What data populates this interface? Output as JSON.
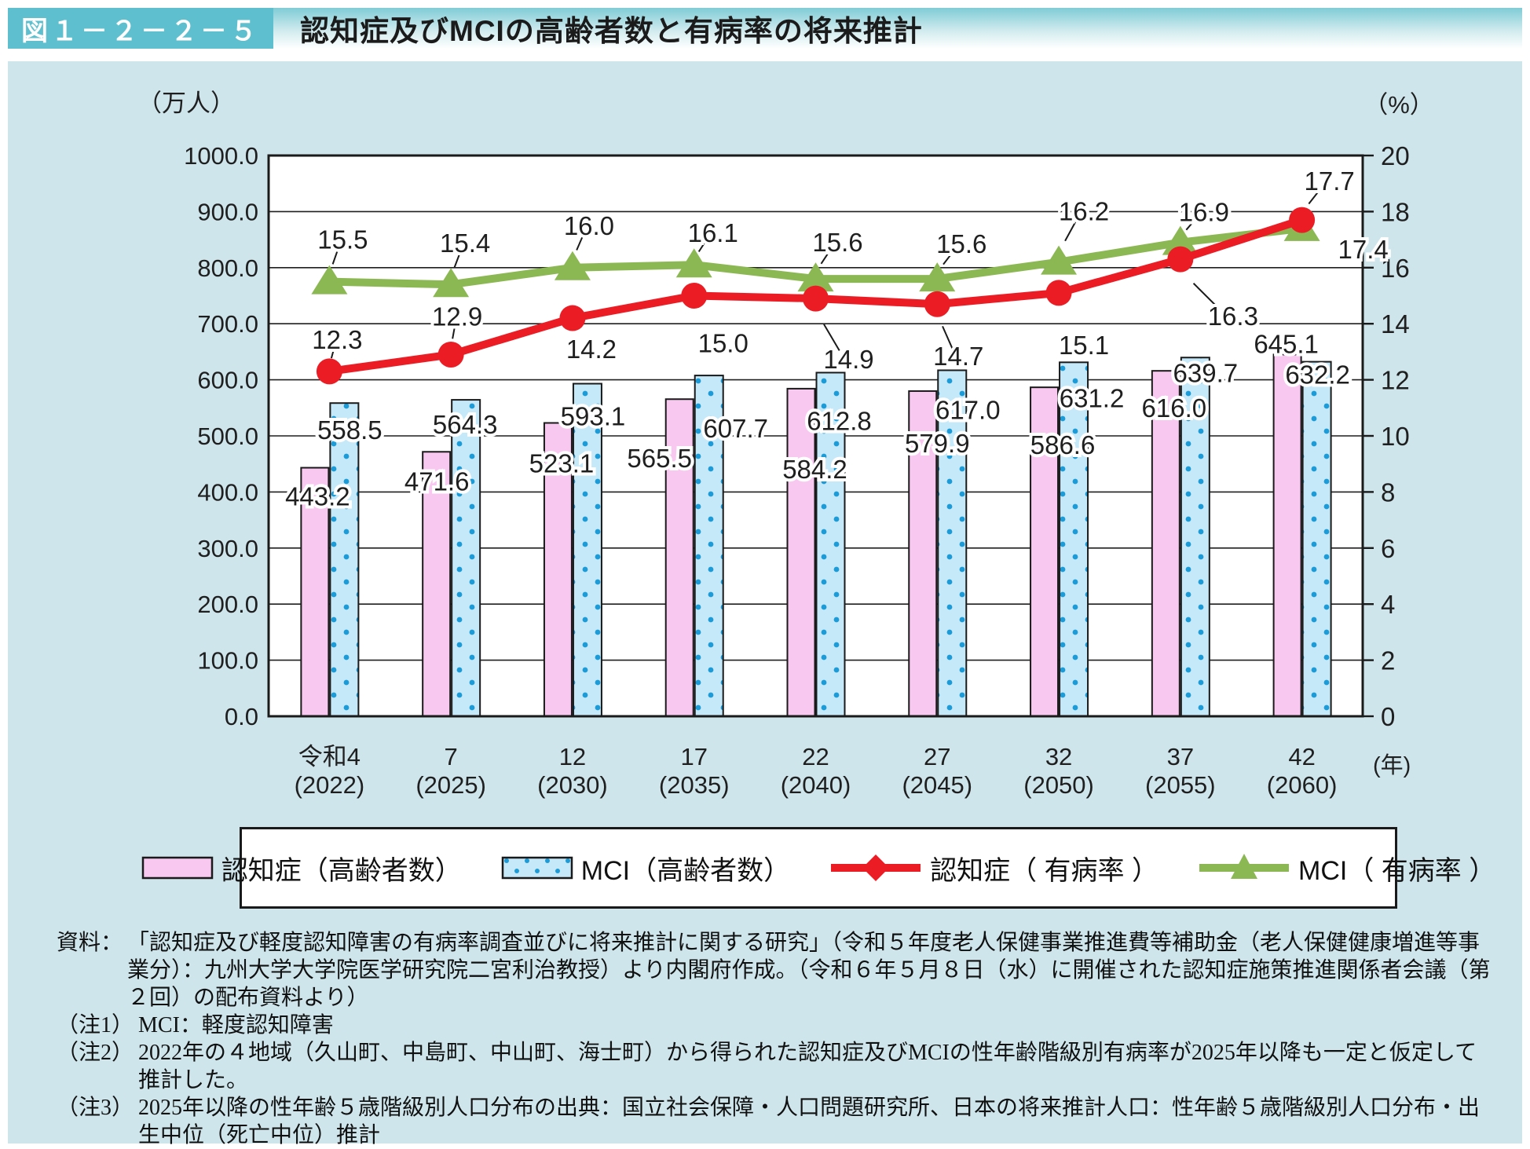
{
  "figure_tag": "図１－２－２－５",
  "figure_title": "認知症及びMCIの高齢者数と有病率の将来推計",
  "chart_data": {
    "type": "combo (bar + line)",
    "title": "認知症及びMCIの高齢者数と有病率の将来推計",
    "grid": "horizontal lines every 100 (left axis)",
    "legend_position": "bottom box",
    "left_axis": {
      "unit": "（万人）",
      "min": 0,
      "max": 1000,
      "step": 100,
      "tick_labels": [
        "1000.0",
        "900.0",
        "800.0",
        "700.0",
        "600.0",
        "500.0",
        "400.0",
        "300.0",
        "200.0",
        "100.0",
        "0.0"
      ]
    },
    "right_axis": {
      "unit": "（%）",
      "min": 0,
      "max": 20,
      "step": 2,
      "tick_labels": [
        "20",
        "18",
        "16",
        "14",
        "12",
        "10",
        "8",
        "6",
        "4",
        "2",
        "0"
      ]
    },
    "x_axis": {
      "unit": "(年)",
      "categories": [
        {
          "era": "令和4",
          "year": "(2022)"
        },
        {
          "era": "7",
          "year": "(2025)"
        },
        {
          "era": "12",
          "year": "(2030)"
        },
        {
          "era": "17",
          "year": "(2035)"
        },
        {
          "era": "22",
          "year": "(2040)"
        },
        {
          "era": "27",
          "year": "(2045)"
        },
        {
          "era": "32",
          "year": "(2050)"
        },
        {
          "era": "37",
          "year": "(2055)"
        },
        {
          "era": "42",
          "year": "(2060)"
        }
      ]
    },
    "series": [
      {
        "key": "dementia-count",
        "label": "認知症（高齢者数）",
        "type": "bar",
        "axis": "left",
        "color": "#f9c8f0",
        "values": [
          443.2,
          471.6,
          523.1,
          565.5,
          584.2,
          579.9,
          586.6,
          616.0,
          645.1
        ]
      },
      {
        "key": "mci-count",
        "label": "MCI（高齢者数）",
        "type": "bar",
        "axis": "left",
        "color": "#c5e9f9",
        "dot_color": "#1d9bd7",
        "values": [
          558.5,
          564.3,
          593.1,
          607.7,
          612.8,
          617.0,
          631.2,
          639.7,
          632.2
        ]
      },
      {
        "key": "dementia-rate",
        "label": "認知症（ 有病率 ）",
        "type": "line",
        "axis": "right",
        "marker": "circle",
        "color": "#ec1c24",
        "values": [
          12.3,
          12.9,
          14.2,
          15.0,
          14.9,
          14.7,
          15.1,
          16.3,
          17.7
        ]
      },
      {
        "key": "mci-rate",
        "label": "MCI（ 有病率 ）",
        "type": "line",
        "axis": "right",
        "marker": "triangle",
        "color": "#8cb854",
        "values": [
          15.5,
          15.4,
          16.0,
          16.1,
          15.6,
          15.6,
          16.2,
          16.9,
          17.4
        ]
      }
    ]
  },
  "notes": {
    "source_label": "資料：",
    "source_text": "「認知症及び軽度認知障害の有病率調査並びに将来推計に関する研究」（令和５年度老人保健事業推進費等補助金（老人保健健康増進等事業分）：九州大学大学院医学研究院二宮利治教授）より内閣府作成。（令和６年５月８日（水）に開催された認知症施策推進関係者会議（第２回）の配布資料より）",
    "items": [
      {
        "label": "（注1）",
        "text": "MCI：軽度認知障害"
      },
      {
        "label": "（注2）",
        "text": "2022年の４地域（久山町、中島町、中山町、海士町）から得られた認知症及びMCIの性年齢階級別有病率が2025年以降も一定と仮定して推計した。"
      },
      {
        "label": "（注3）",
        "text": "2025年以降の性年齢５歳階級別人口分布の出典：国立社会保障・人口問題研究所、日本の将来推計人口：性年齢５歳階級別人口分布・出生中位（死亡中位）推計"
      }
    ]
  }
}
